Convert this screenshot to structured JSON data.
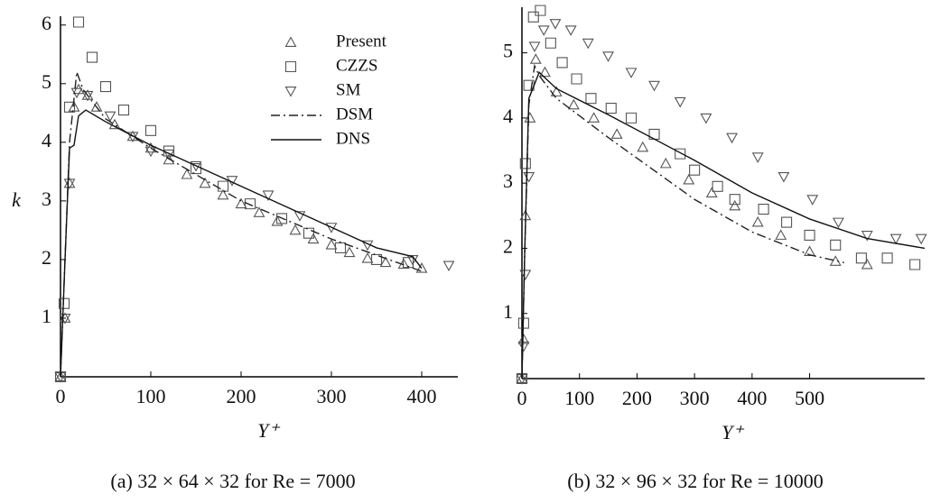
{
  "chart_data": [
    {
      "type": "line",
      "x_label": "Y⁺",
      "y_label": "k",
      "caption": "(a) 32 × 64 × 32 for Re = 7000",
      "xlim": [
        0,
        440
      ],
      "ylim": [
        0,
        6.15
      ],
      "xticks": [
        0,
        100,
        200,
        300,
        400
      ],
      "yticks": [
        1,
        2,
        3,
        4,
        5,
        6
      ],
      "legend": true,
      "series": [
        {
          "name": "Present",
          "marker": "triangle-up",
          "color": "#555",
          "x": [
            0,
            5,
            10,
            15,
            20,
            30,
            40,
            60,
            80,
            100,
            120,
            140,
            160,
            180,
            200,
            220,
            240,
            260,
            280,
            300,
            320,
            340,
            360,
            380,
            400
          ],
          "values": [
            0,
            1,
            3.3,
            4.6,
            4.9,
            4.8,
            4.6,
            4.3,
            4.1,
            3.9,
            3.7,
            3.45,
            3.3,
            3.1,
            2.95,
            2.8,
            2.65,
            2.5,
            2.35,
            2.25,
            2.12,
            2.02,
            1.95,
            1.92,
            1.85
          ]
        },
        {
          "name": "CZZS",
          "marker": "square",
          "color": "#555",
          "x": [
            0,
            4,
            10,
            20,
            35,
            50,
            70,
            100,
            120,
            150,
            180,
            210,
            245,
            275,
            310,
            350,
            385
          ],
          "values": [
            0,
            1.25,
            4.6,
            6.05,
            5.45,
            4.95,
            4.55,
            4.2,
            3.85,
            3.55,
            3.25,
            2.95,
            2.7,
            2.45,
            2.2,
            2.0,
            1.95
          ]
        },
        {
          "name": "SM",
          "marker": "triangle-down",
          "color": "#555",
          "x": [
            0,
            5,
            10,
            18,
            30,
            55,
            80,
            100,
            120,
            150,
            190,
            230,
            265,
            300,
            340,
            390,
            430
          ],
          "values": [
            0,
            1,
            3.3,
            4.85,
            4.8,
            4.45,
            4.1,
            3.85,
            3.8,
            3.6,
            3.35,
            3.1,
            2.75,
            2.55,
            2.25,
            2.0,
            1.9
          ]
        },
        {
          "name": "DSM",
          "line": "dash-dot",
          "color": "#222",
          "x": [
            0,
            5,
            10,
            18,
            25,
            50,
            100,
            200,
            300,
            400
          ],
          "values": [
            0,
            2,
            4,
            5.2,
            4.9,
            4.4,
            3.9,
            3.0,
            2.35,
            1.8
          ]
        },
        {
          "name": "DNS",
          "line": "solid",
          "color": "#111",
          "x": [
            0,
            5,
            10,
            15,
            20,
            28,
            50,
            100,
            200,
            300,
            350,
            390,
            400
          ],
          "values": [
            0,
            2,
            3.9,
            3.95,
            4.45,
            4.55,
            4.35,
            3.95,
            3.25,
            2.55,
            2.2,
            2.05,
            1.85
          ]
        }
      ]
    },
    {
      "type": "line",
      "x_label": "Y⁺",
      "caption": "(b) 32 × 96 × 32 for Re = 10000",
      "xlim": [
        0,
        700
      ],
      "ylim": [
        0,
        5.7
      ],
      "xticks": [
        0,
        100,
        200,
        300,
        400,
        500
      ],
      "yticks": [
        1,
        2,
        3,
        4,
        5
      ],
      "legend": false,
      "series": [
        {
          "name": "Present",
          "marker": "triangle-up",
          "color": "#555",
          "x": [
            0,
            3,
            6,
            14,
            24,
            40,
            60,
            90,
            125,
            165,
            210,
            250,
            290,
            330,
            370,
            410,
            450,
            500,
            545,
            600
          ],
          "values": [
            0,
            0.6,
            2.5,
            4.0,
            4.9,
            4.7,
            4.4,
            4.2,
            4.0,
            3.75,
            3.55,
            3.3,
            3.05,
            2.85,
            2.65,
            2.4,
            2.2,
            1.95,
            1.8,
            1.75
          ]
        },
        {
          "name": "CZZS",
          "marker": "square",
          "color": "#555",
          "x": [
            0,
            3,
            6,
            12,
            20,
            32,
            50,
            70,
            95,
            120,
            155,
            190,
            230,
            275,
            300,
            340,
            370,
            420,
            460,
            500,
            545,
            590,
            635,
            683
          ],
          "values": [
            0,
            0.85,
            3.3,
            4.5,
            5.55,
            5.65,
            5.15,
            4.85,
            4.6,
            4.3,
            4.15,
            4.0,
            3.75,
            3.45,
            3.2,
            2.95,
            2.75,
            2.6,
            2.4,
            2.2,
            2.05,
            1.85,
            1.85,
            1.75
          ]
        },
        {
          "name": "SM",
          "marker": "triangle-down",
          "color": "#555",
          "x": [
            0,
            3,
            6,
            12,
            22,
            38,
            58,
            85,
            115,
            150,
            190,
            230,
            275,
            320,
            365,
            410,
            455,
            505,
            550,
            600,
            650,
            694
          ],
          "values": [
            0,
            0.5,
            1.6,
            3.1,
            5.1,
            5.35,
            5.45,
            5.35,
            5.15,
            4.95,
            4.7,
            4.5,
            4.25,
            4.0,
            3.7,
            3.4,
            3.1,
            2.75,
            2.4,
            2.2,
            2.15,
            2.15
          ]
        },
        {
          "name": "DSM",
          "line": "dash-dot",
          "color": "#222",
          "x": [
            0,
            5,
            12,
            22,
            30,
            60,
            150,
            300,
            400,
            500,
            560
          ],
          "values": [
            0,
            2,
            4.2,
            4.8,
            4.65,
            4.3,
            3.7,
            2.75,
            2.25,
            1.9,
            1.78
          ]
        },
        {
          "name": "DNS",
          "line": "solid",
          "color": "#111",
          "x": [
            0,
            5,
            12,
            30,
            60,
            150,
            300,
            400,
            500,
            600,
            700
          ],
          "values": [
            0,
            2,
            4.3,
            4.7,
            4.45,
            4.05,
            3.35,
            2.85,
            2.45,
            2.15,
            2.0
          ]
        }
      ]
    }
  ]
}
